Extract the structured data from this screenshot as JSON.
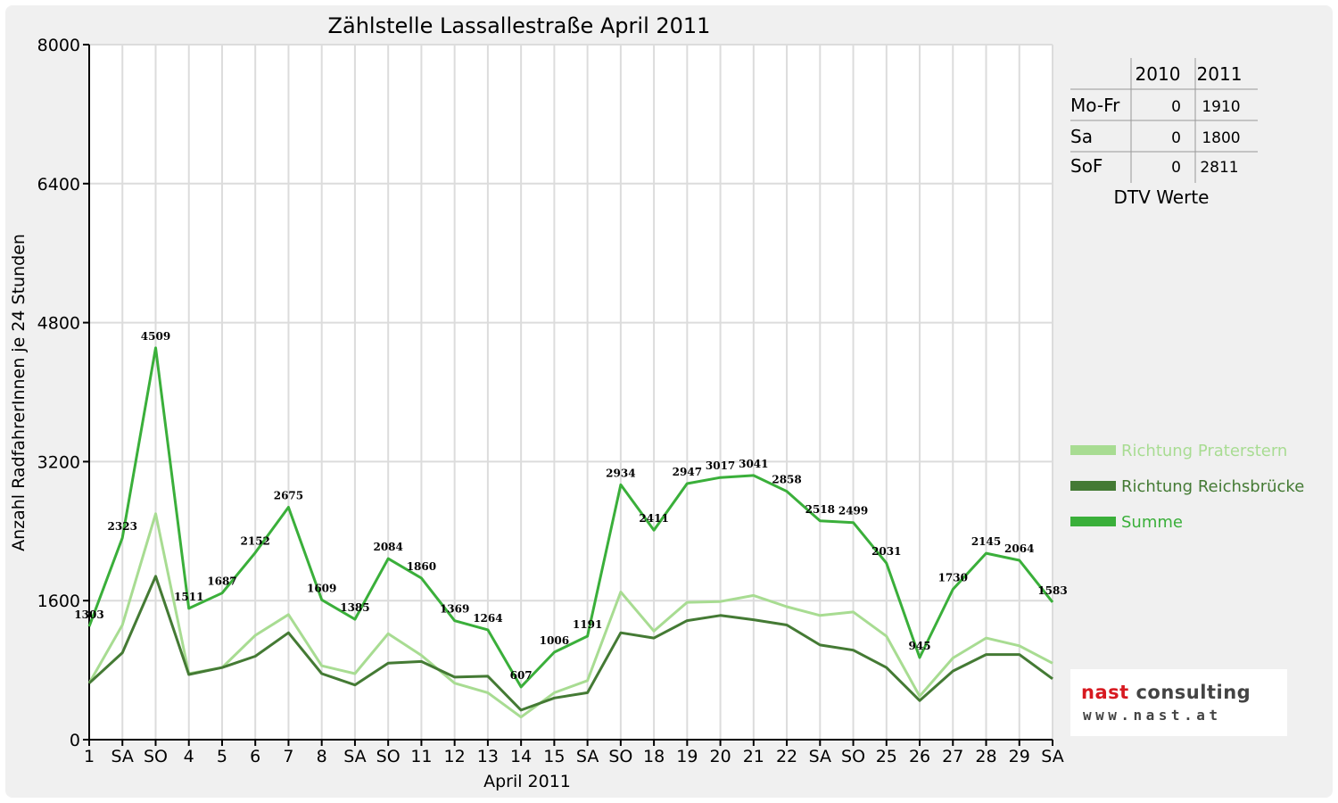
{
  "chart_data": {
    "type": "line",
    "title": "Zählstelle Lassallestraße April 2011",
    "xlabel": "April 2011",
    "ylabel": "Anzahl RadfahrerInnen je 24 Stunden",
    "ylim": [
      0,
      8000
    ],
    "yticks": [
      "0",
      "1600",
      "3200",
      "4800",
      "6400",
      "8000"
    ],
    "grid": true,
    "legend_position": "right",
    "categories": [
      "1",
      "SA",
      "SO",
      "4",
      "5",
      "6",
      "7",
      "8",
      "SA",
      "SO",
      "11",
      "12",
      "13",
      "14",
      "15",
      "SA",
      "SO",
      "18",
      "19",
      "20",
      "21",
      "22",
      "SA",
      "SO",
      "25",
      "26",
      "27",
      "28",
      "29",
      "SA"
    ],
    "red_categories": [
      2,
      9,
      16,
      23,
      24
    ],
    "series": [
      {
        "name": "Richtung Praterstern",
        "color": "#a8dc92",
        "values": [
          650,
          1320,
          2600,
          760,
          830,
          1200,
          1440,
          850,
          760,
          1220,
          970,
          650,
          540,
          260,
          540,
          680,
          1700,
          1250,
          1580,
          1590,
          1660,
          1530,
          1430,
          1470,
          1190,
          500,
          940,
          1170,
          1080,
          880
        ]
      },
      {
        "name": "Richtung Reichsbrücke",
        "color": "#447a34",
        "values": [
          650,
          1000,
          1880,
          750,
          830,
          960,
          1230,
          760,
          630,
          880,
          900,
          720,
          730,
          340,
          480,
          540,
          1230,
          1170,
          1370,
          1430,
          1380,
          1320,
          1090,
          1030,
          830,
          450,
          790,
          980,
          980,
          700
        ]
      },
      {
        "name": "Summe",
        "color": "#3aaf3a",
        "values": [
          1303,
          2323,
          4509,
          1511,
          1687,
          2152,
          2675,
          1609,
          1385,
          2084,
          1860,
          1369,
          1264,
          607,
          1006,
          1191,
          2934,
          2411,
          2947,
          3017,
          3041,
          2858,
          2518,
          2499,
          2031,
          945,
          1730,
          2145,
          2064,
          1583
        ],
        "labels": [
          "1303",
          "2323",
          "4509",
          "1511",
          "1687",
          "2152",
          "2675",
          "1609",
          "1385",
          "2084",
          "1860",
          "1369",
          "1264",
          "607",
          "1006",
          "1191",
          "2934",
          "2411",
          "2947",
          "3017",
          "3041",
          "2858",
          "2518",
          "2499",
          "2031",
          "945",
          "1730",
          "2145",
          "2064",
          "1583"
        ]
      }
    ]
  },
  "dtv_table": {
    "headers": [
      "2010",
      "2011"
    ],
    "rows": [
      {
        "label": "Mo-Fr",
        "v2010": "0",
        "v2011": "1910"
      },
      {
        "label": "Sa",
        "v2010": "0",
        "v2011": "1800"
      },
      {
        "label": "SoF",
        "v2010": "0",
        "v2011": "2811"
      }
    ],
    "caption": "DTV Werte"
  },
  "logo": {
    "name_part1": "nast",
    "name_part2": " consulting",
    "url": "www.nast.at"
  }
}
